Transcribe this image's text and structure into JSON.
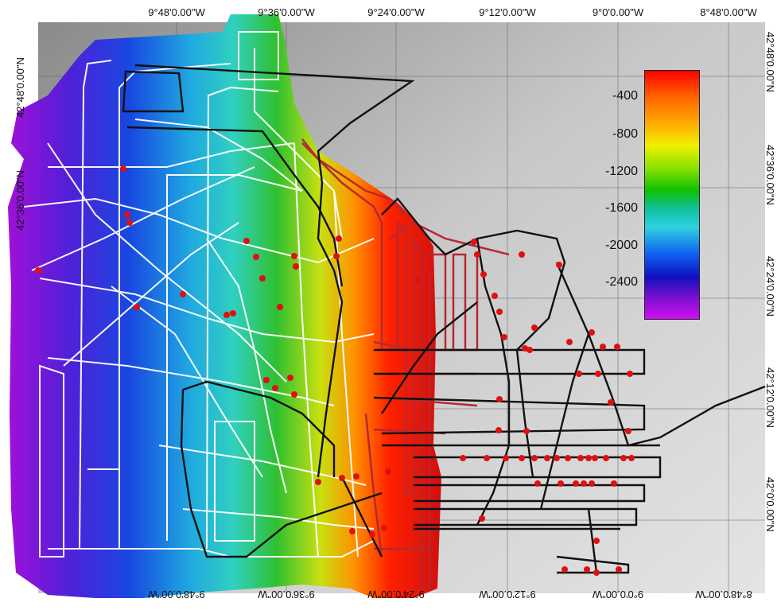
{
  "map": {
    "top_longitude_labels": [
      "9°48'0.00\"W",
      "9°36'0.00\"W",
      "9°24'0.00\"W",
      "9°12'0.00\"W",
      "9°0'0.00\"W",
      "8°48'0.00\"W"
    ],
    "bottom_longitude_labels": [
      "9°48'0.00\"W",
      "9°36'0.00\"W",
      "9°24'0.00\"W",
      "9°12'0.00\"W",
      "9°0'0.00\"W",
      "8°48'0.00\"W"
    ],
    "left_latitude_labels": [
      "42°48'0.00\"N",
      "42°36'0.00\"N"
    ],
    "right_latitude_labels": [
      "42°48'0.00\"N",
      "42°36'0.00\"N",
      "42°24'0.00\"N",
      "42°12'0.00\"N",
      "42°0'0.00\"N"
    ],
    "colors": {
      "background_light": "#d8d8d8",
      "background_dark": "#8a8a8a",
      "white_tracks": "#ffffff",
      "black_tracks": "#111111",
      "station_marker": "#e01010",
      "red_tracks": "#c8282a"
    }
  },
  "legend": {
    "ticks": [
      "-400",
      "-800",
      "-1200",
      "-1600",
      "-2000",
      "-2400"
    ],
    "palette": [
      "#ff0000",
      "#ffb000",
      "#f0f000",
      "#10c000",
      "#30d0e0",
      "#1060f0",
      "#d010f0"
    ]
  }
}
